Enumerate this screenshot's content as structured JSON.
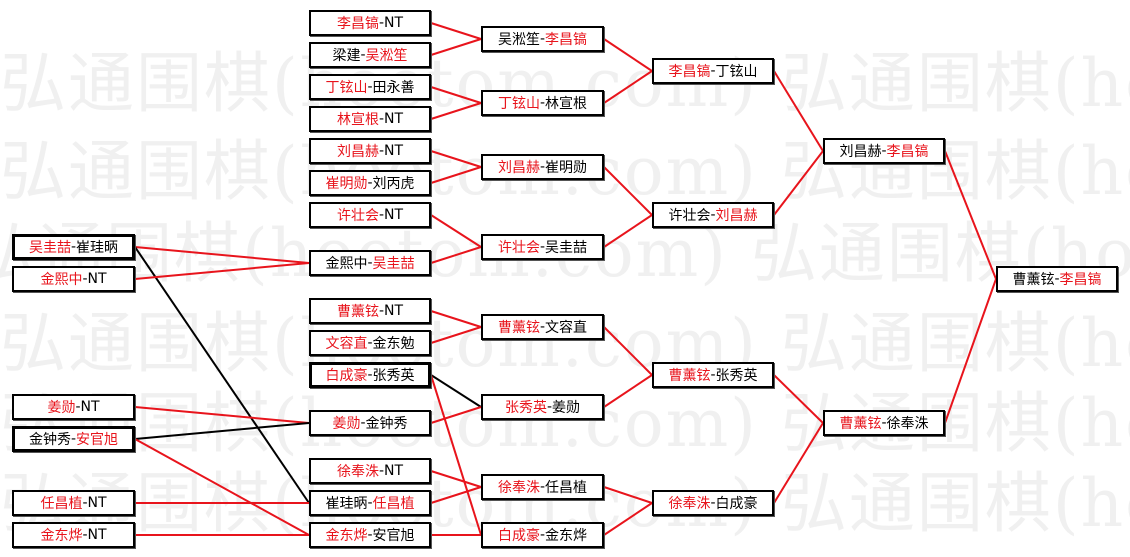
{
  "watermark": "弘通围棋(hoetom.com)",
  "separator": "-",
  "colors": {
    "winner": "#e8141c",
    "loser": "#000000",
    "line_red": "#e8141c",
    "line_black": "#000000"
  },
  "matches": [
    {
      "a": "吴圭喆",
      "b": "崔珪昞",
      "winner": "a",
      "highlight": true
    },
    {
      "a": "金熙中",
      "b": "NT",
      "winner": "a"
    },
    {
      "a": "姜勋",
      "b": "NT",
      "winner": "a"
    },
    {
      "a": "金钟秀",
      "b": "安官旭",
      "winner": "b",
      "highlight": true
    },
    {
      "a": "任昌植",
      "b": "NT",
      "winner": "a"
    },
    {
      "a": "金东烨",
      "b": "NT",
      "winner": "a"
    },
    {
      "a": "李昌镐",
      "b": "NT",
      "winner": "a"
    },
    {
      "a": "梁建",
      "b": "吴淞笙",
      "winner": "b"
    },
    {
      "a": "丁铉山",
      "b": "田永善",
      "winner": "a"
    },
    {
      "a": "林宣根",
      "b": "NT",
      "winner": "a"
    },
    {
      "a": "刘昌赫",
      "b": "NT",
      "winner": "a"
    },
    {
      "a": "崔明勋",
      "b": "刘丙虎",
      "winner": "a"
    },
    {
      "a": "许壮会",
      "b": "NT",
      "winner": "a"
    },
    {
      "a": "金熙中",
      "b": "吴圭喆",
      "winner": "b"
    },
    {
      "a": "曹薰铉",
      "b": "NT",
      "winner": "a"
    },
    {
      "a": "文容直",
      "b": "金东勉",
      "winner": "a"
    },
    {
      "a": "白成豪",
      "b": "张秀英",
      "winner": "a",
      "highlight": true
    },
    {
      "a": "姜勋",
      "b": "金钟秀",
      "winner": "a"
    },
    {
      "a": "徐奉洙",
      "b": "NT",
      "winner": "a"
    },
    {
      "a": "崔珪昞",
      "b": "任昌植",
      "winner": "b"
    },
    {
      "a": "金东烨",
      "b": "安官旭",
      "winner": "a"
    },
    {
      "a": "吴淞笙",
      "b": "李昌镐",
      "winner": "b"
    },
    {
      "a": "丁铉山",
      "b": "林宣根",
      "winner": "a"
    },
    {
      "a": "刘昌赫",
      "b": "崔明勋",
      "winner": "a"
    },
    {
      "a": "许壮会",
      "b": "吴圭喆",
      "winner": "a"
    },
    {
      "a": "曹薰铉",
      "b": "文容直",
      "winner": "a"
    },
    {
      "a": "张秀英",
      "b": "姜勋",
      "winner": "a"
    },
    {
      "a": "徐奉洙",
      "b": "任昌植",
      "winner": "a"
    },
    {
      "a": "白成豪",
      "b": "金东烨",
      "winner": "a"
    },
    {
      "a": "李昌镐",
      "b": "丁铉山",
      "winner": "a"
    },
    {
      "a": "许壮会",
      "b": "刘昌赫",
      "winner": "b"
    },
    {
      "a": "曹薰铉",
      "b": "张秀英",
      "winner": "a"
    },
    {
      "a": "徐奉洙",
      "b": "白成豪",
      "winner": "a"
    },
    {
      "a": "刘昌赫",
      "b": "李昌镐",
      "winner": "b"
    },
    {
      "a": "曹薰铉",
      "b": "徐奉洙",
      "winner": "a"
    },
    {
      "a": "曹薰铉",
      "b": "李昌镐",
      "winner": "b"
    }
  ],
  "links": [
    {
      "from": 0,
      "to": 13,
      "color": "red"
    },
    {
      "from": 0,
      "to": 19,
      "color": "black"
    },
    {
      "from": 1,
      "to": 13,
      "color": "red"
    },
    {
      "from": 2,
      "to": 17,
      "color": "red"
    },
    {
      "from": 3,
      "to": 17,
      "color": "black"
    },
    {
      "from": 3,
      "to": 20,
      "color": "red"
    },
    {
      "from": 4,
      "to": 19,
      "color": "red"
    },
    {
      "from": 5,
      "to": 20,
      "color": "red"
    },
    {
      "from": 6,
      "to": 21,
      "color": "red"
    },
    {
      "from": 7,
      "to": 21,
      "color": "red"
    },
    {
      "from": 8,
      "to": 22,
      "color": "red"
    },
    {
      "from": 9,
      "to": 22,
      "color": "red"
    },
    {
      "from": 10,
      "to": 23,
      "color": "red"
    },
    {
      "from": 11,
      "to": 23,
      "color": "red"
    },
    {
      "from": 12,
      "to": 24,
      "color": "red"
    },
    {
      "from": 13,
      "to": 24,
      "color": "red"
    },
    {
      "from": 14,
      "to": 25,
      "color": "red"
    },
    {
      "from": 15,
      "to": 25,
      "color": "red"
    },
    {
      "from": 16,
      "to": 26,
      "color": "black"
    },
    {
      "from": 16,
      "to": 28,
      "color": "red"
    },
    {
      "from": 17,
      "to": 26,
      "color": "red"
    },
    {
      "from": 18,
      "to": 27,
      "color": "red"
    },
    {
      "from": 19,
      "to": 27,
      "color": "red"
    },
    {
      "from": 20,
      "to": 28,
      "color": "red"
    },
    {
      "from": 21,
      "to": 29,
      "color": "red"
    },
    {
      "from": 22,
      "to": 29,
      "color": "red"
    },
    {
      "from": 23,
      "to": 30,
      "color": "red"
    },
    {
      "from": 24,
      "to": 30,
      "color": "red"
    },
    {
      "from": 25,
      "to": 31,
      "color": "red"
    },
    {
      "from": 26,
      "to": 31,
      "color": "red"
    },
    {
      "from": 27,
      "to": 32,
      "color": "red"
    },
    {
      "from": 28,
      "to": 32,
      "color": "red"
    },
    {
      "from": 29,
      "to": 33,
      "color": "red"
    },
    {
      "from": 30,
      "to": 33,
      "color": "red"
    },
    {
      "from": 31,
      "to": 34,
      "color": "red"
    },
    {
      "from": 32,
      "to": 34,
      "color": "red"
    },
    {
      "from": 33,
      "to": 35,
      "color": "red"
    },
    {
      "from": 34,
      "to": 35,
      "color": "red"
    }
  ]
}
